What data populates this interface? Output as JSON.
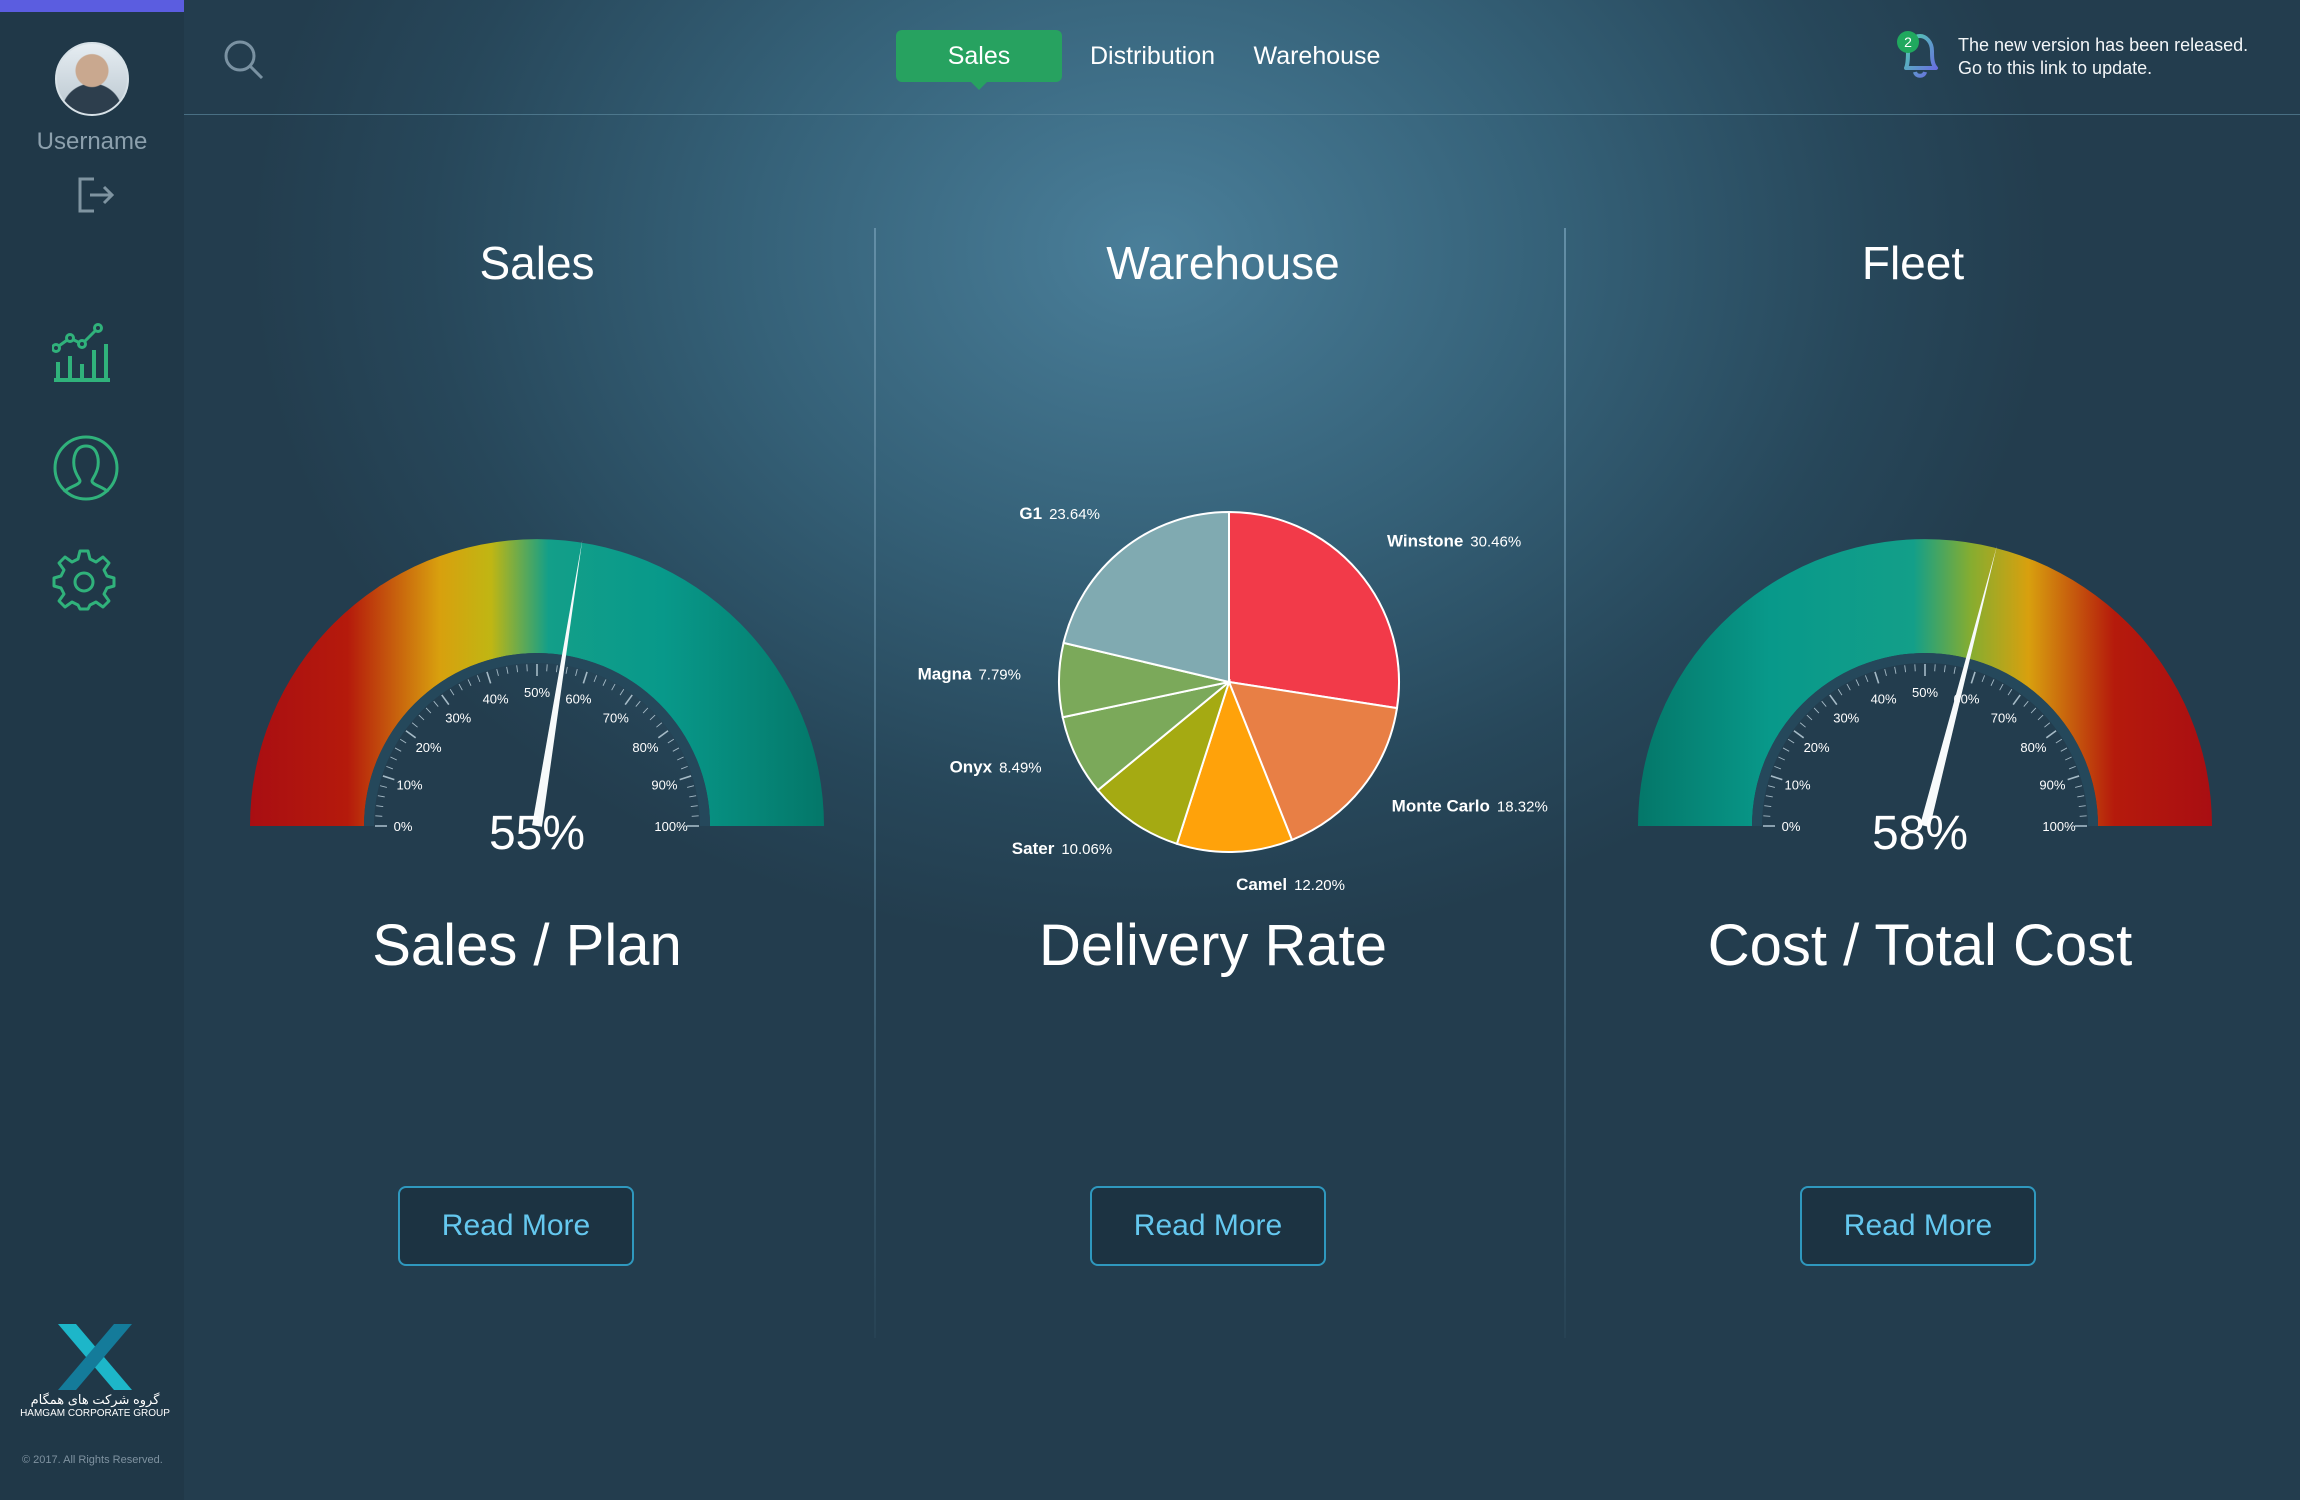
{
  "sidebar": {
    "username": "Username",
    "logo_fa": "گروه شرکت های همگام",
    "logo_en": "HAMGAM CORPORATE GROUP",
    "copyright": "© 2017. All Rights Reserved."
  },
  "header": {
    "tabs": [
      "Sales",
      "Distribution",
      "Warehouse"
    ],
    "notification_count": "2",
    "notification_line1": "The new version has been released.",
    "notification_line2": "Go to this link to update."
  },
  "panels": [
    {
      "title": "Sales",
      "metric": "Sales / Plan",
      "percent": "55%",
      "button": "Read More"
    },
    {
      "title": "Warehouse",
      "metric": "Delivery Rate",
      "button": "Read More"
    },
    {
      "title": "Fleet",
      "metric": "Cost / Total Cost",
      "percent": "58%",
      "button": "Read More"
    }
  ],
  "gauge_ticks": [
    "0%",
    "10%",
    "20%",
    "30%",
    "40%",
    "50%",
    "60%",
    "70%",
    "80%",
    "90%",
    "100%"
  ],
  "gauges": [
    {
      "value": 55,
      "scale": "red-to-teal"
    },
    {
      "value": 58,
      "scale": "teal-to-red"
    }
  ],
  "chart_data": {
    "type": "pie",
    "slices": [
      {
        "name": "Winstone",
        "value": 30.46,
        "label": "30.46%",
        "color": "#f23a49"
      },
      {
        "name": "Monte Carlo",
        "value": 18.32,
        "label": "18.32%",
        "color": "#e87f45"
      },
      {
        "name": "Camel",
        "value": 12.2,
        "label": "12.20%",
        "color": "#ffa20a"
      },
      {
        "name": "Sater",
        "value": 10.06,
        "label": "10.06%",
        "color": "#a5aa12"
      },
      {
        "name": "Onyx",
        "value": 8.49,
        "label": "8.49%",
        "color": "#7ba95a"
      },
      {
        "name": "Magna",
        "value": 7.79,
        "label": "7.79%",
        "color": "#7ba95a"
      },
      {
        "name": "G1",
        "value": 23.64,
        "label": "23.64%",
        "color": "#80aab1"
      }
    ]
  },
  "colors": {
    "active_tab": "#27a260",
    "button_border": "#2f98be",
    "sidebar": "#203848",
    "sidebar_accent": "#5b5de0"
  }
}
